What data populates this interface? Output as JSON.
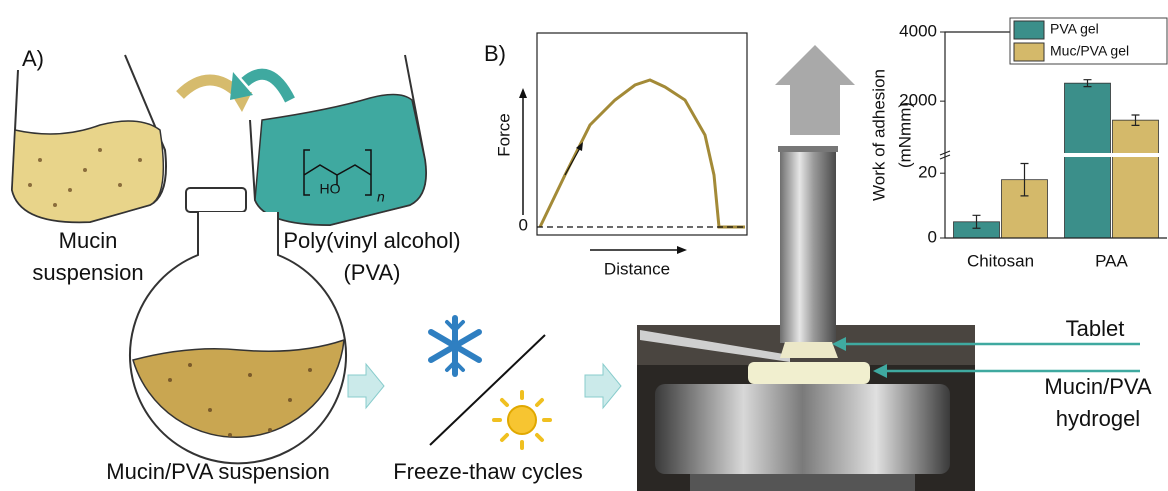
{
  "panel_a": {
    "label": "A)",
    "mucin": [
      "Mucin",
      "suspension"
    ],
    "pva": [
      "Poly(vinyl alcohol)",
      "(PVA)"
    ],
    "structure": {
      "group": "HO",
      "subscript": "n"
    },
    "mixture": "Mucin/PVA suspension",
    "process": "Freeze-thaw cycles"
  },
  "panel_b": {
    "label": "B)",
    "tablet": "Tablet",
    "hydrogel": [
      "Mucin/PVA",
      "hydrogel"
    ]
  },
  "force_plot": {
    "xlabel": "Distance",
    "ylabel": "Force",
    "yticks": [
      0
    ]
  },
  "chart_data": {
    "type": "bar",
    "ylabel": [
      "Work of adhesion",
      "(mNmm)"
    ],
    "categories": [
      "Chitosan",
      "PAA"
    ],
    "series": [
      {
        "name": "PVA gel",
        "color": "#3b8f8a",
        "values": [
          5,
          2520
        ],
        "errors": [
          2,
          100
        ]
      },
      {
        "name": "Muc/PVA gel",
        "color": "#d4b96a",
        "values": [
          18,
          1450
        ],
        "errors": [
          5,
          150
        ]
      }
    ],
    "y_segments": [
      {
        "ylim": [
          0,
          25
        ],
        "yticks": [
          0,
          20
        ]
      },
      {
        "ylim": [
          500,
          4000
        ],
        "yticks": [
          2000,
          4000
        ]
      }
    ],
    "legend": "upper right"
  }
}
